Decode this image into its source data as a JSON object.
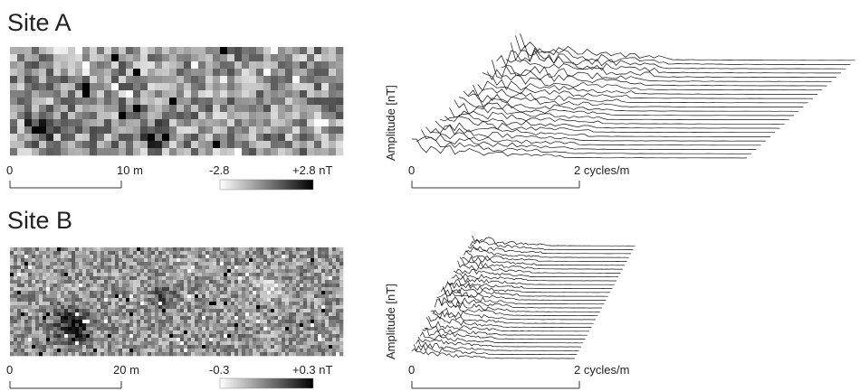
{
  "panels": [
    {
      "title": "Site A",
      "map": {
        "scale_start": "0",
        "scale_end": "10 m",
        "colorbar_min": "-2.8",
        "colorbar_max": "+2.8 nT"
      },
      "spectrum": {
        "ylabel": "Amplitude [nT]",
        "x_start": "0",
        "x_end": "2 cycles/m"
      }
    },
    {
      "title": "Site B",
      "map": {
        "scale_start": "0",
        "scale_end": "20 m",
        "colorbar_min": "-0.3",
        "colorbar_max": "+0.3 nT"
      },
      "spectrum": {
        "ylabel": "Amplitude [nT]",
        "x_start": "0",
        "x_end": "2 cycles/m"
      }
    }
  ],
  "chart_data": [
    {
      "type": "line",
      "panel": "Site A",
      "xlabel": "cycles/m",
      "ylabel": "Amplitude [nT]",
      "xlim": [
        0,
        2
      ],
      "traces": 24,
      "style": "waterfall, black lines, no grid"
    },
    {
      "type": "line",
      "panel": "Site B",
      "xlabel": "cycles/m",
      "ylabel": "Amplitude [nT]",
      "xlim": [
        0,
        2
      ],
      "traces": 30,
      "style": "waterfall, black lines, no grid"
    },
    {
      "type": "heatmap",
      "panel": "Site A",
      "value_range": [
        -2.8,
        2.8
      ],
      "unit": "nT",
      "colormap": "white-to-black grayscale"
    },
    {
      "type": "heatmap",
      "panel": "Site B",
      "value_range": [
        -0.3,
        0.3
      ],
      "unit": "nT",
      "colormap": "white-to-black grayscale"
    }
  ]
}
